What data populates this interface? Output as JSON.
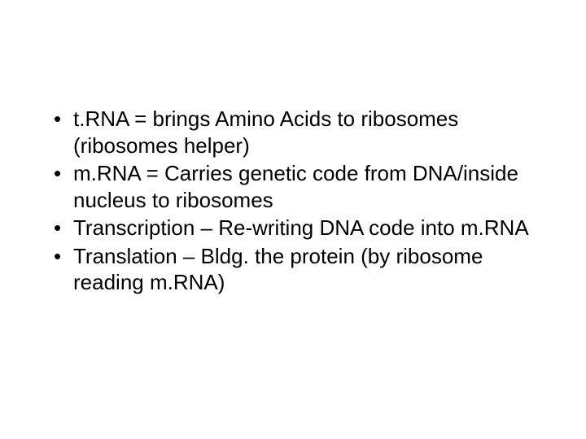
{
  "slide": {
    "background_color": "#ffffff",
    "text_color": "#000000",
    "font_family": "Arial",
    "font_size_pt": 20,
    "bullets": [
      "t.RNA = brings Amino Acids to ribosomes (ribosomes helper)",
      "m.RNA = Carries genetic code from DNA/inside nucleus to ribosomes",
      "Transcription – Re-writing DNA code into m.RNA",
      "Translation – Bldg. the protein (by ribosome reading m.RNA)"
    ]
  }
}
